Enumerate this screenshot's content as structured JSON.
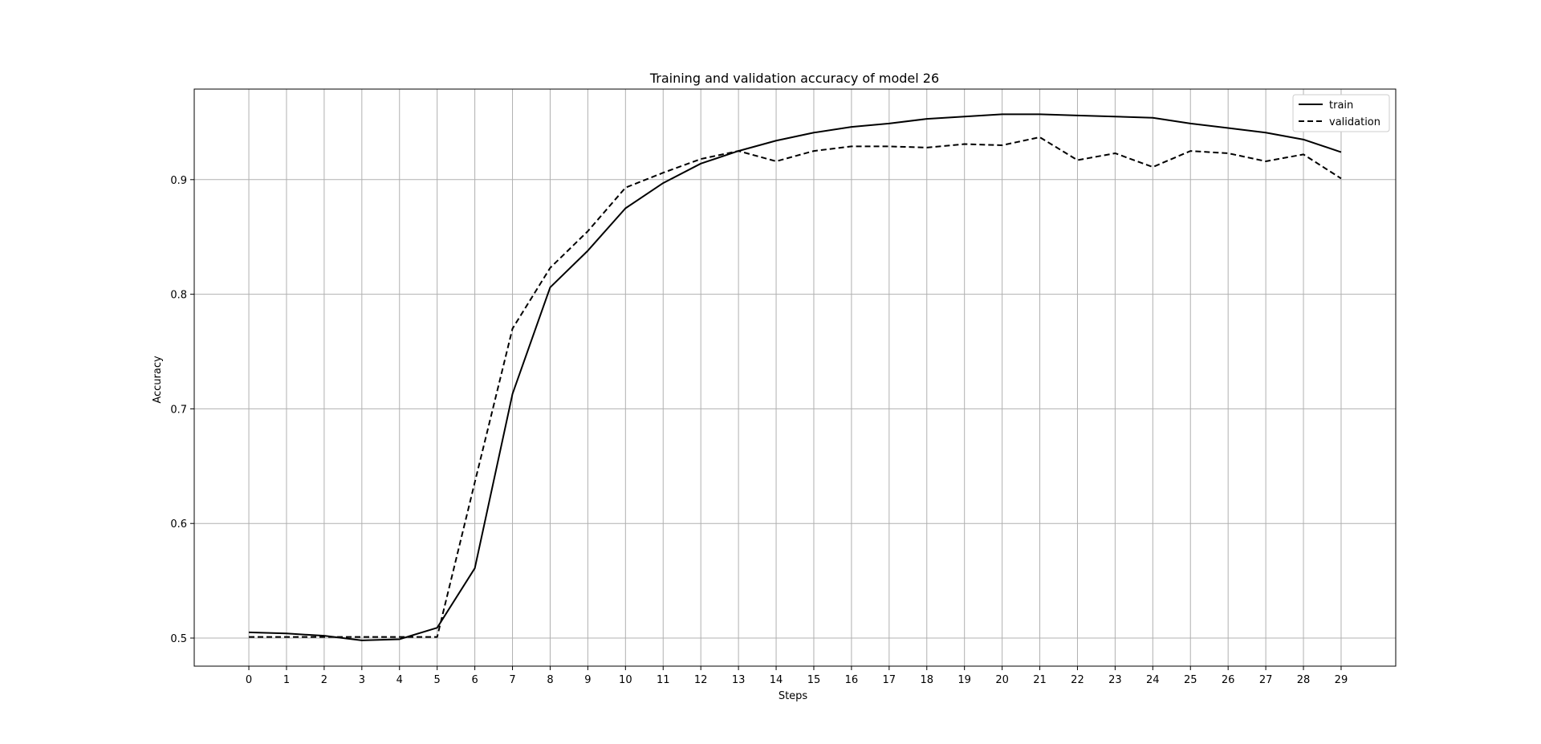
{
  "chart_data": {
    "type": "line",
    "title": "Training and validation accuracy of model 26",
    "xlabel": "Steps",
    "ylabel": "Accuracy",
    "x": [
      0,
      1,
      2,
      3,
      4,
      5,
      6,
      7,
      8,
      9,
      10,
      11,
      12,
      13,
      14,
      15,
      16,
      17,
      18,
      19,
      20,
      21,
      22,
      23,
      24,
      25,
      26,
      27,
      28,
      29
    ],
    "x_tick_labels": [
      "0",
      "1",
      "2",
      "3",
      "4",
      "5",
      "6",
      "7",
      "8",
      "9",
      "10",
      "11",
      "12",
      "13",
      "14",
      "15",
      "16",
      "17",
      "18",
      "19",
      "20",
      "21",
      "22",
      "23",
      "24",
      "25",
      "26",
      "27",
      "28",
      "29"
    ],
    "xlim": [
      -1.45,
      30.45
    ],
    "ylim": [
      0.4755,
      0.979
    ],
    "y_ticks": [
      0.5,
      0.6,
      0.7,
      0.8,
      0.9
    ],
    "y_tick_labels": [
      "0.5",
      "0.6",
      "0.7",
      "0.8",
      "0.9"
    ],
    "grid": true,
    "legend_position": "top-right",
    "series": [
      {
        "name": "train",
        "line_style": "solid",
        "color": "#000000",
        "values": [
          0.505,
          0.504,
          0.502,
          0.498,
          0.499,
          0.509,
          0.561,
          0.713,
          0.806,
          0.838,
          0.875,
          0.897,
          0.914,
          0.925,
          0.934,
          0.941,
          0.946,
          0.949,
          0.953,
          0.955,
          0.957,
          0.957,
          0.956,
          0.955,
          0.954,
          0.949,
          0.945,
          0.941,
          0.935,
          0.924
        ]
      },
      {
        "name": "validation",
        "line_style": "dashed",
        "color": "#000000",
        "values": [
          0.501,
          0.501,
          0.501,
          0.501,
          0.501,
          0.501,
          0.636,
          0.77,
          0.823,
          0.855,
          0.893,
          0.906,
          0.918,
          0.925,
          0.916,
          0.925,
          0.929,
          0.929,
          0.928,
          0.931,
          0.93,
          0.937,
          0.917,
          0.923,
          0.911,
          0.925,
          0.923,
          0.916,
          0.922,
          0.901
        ]
      }
    ]
  }
}
